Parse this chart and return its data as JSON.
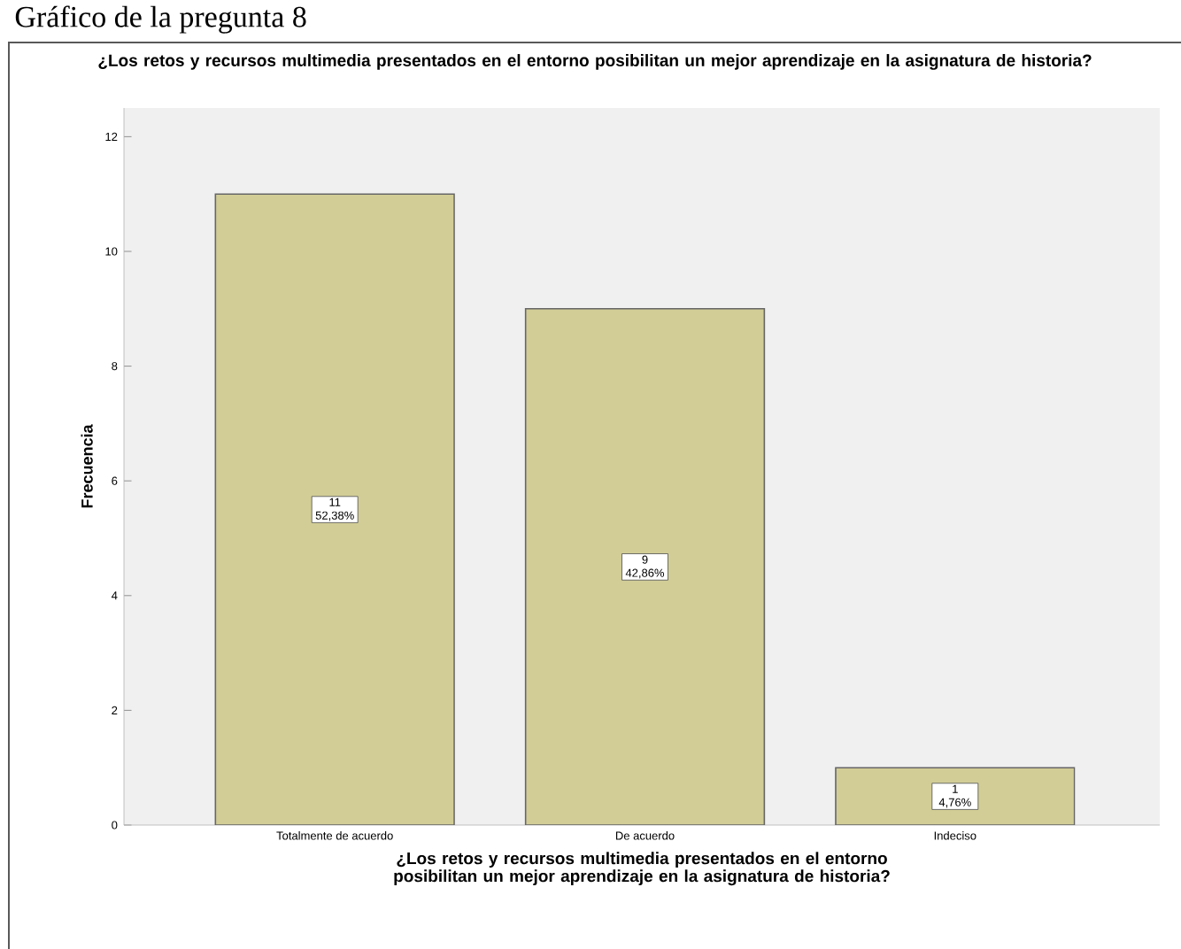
{
  "chart_data": {
    "type": "bar",
    "title": "¿Los retos y recursos multimedia presentados en el entorno posibilitan un mejor aprendizaje en la asignatura de historia?",
    "xlabel": "¿Los retos y recursos multimedia presentados en el entorno posibilitan un mejor aprendizaje en la asignatura de historia?",
    "ylabel": "Frecuencia",
    "categories": [
      "Totalmente de acuerdo",
      "De acuerdo",
      "Indeciso"
    ],
    "values": [
      11,
      9,
      1
    ],
    "value_labels": [
      "11 52,38%",
      "9 42,86%",
      "1 4,76%"
    ],
    "color": "#d2cd96",
    "ylim": [
      0,
      12.5
    ],
    "yticks": [
      0,
      2,
      4,
      6,
      8,
      10,
      12
    ],
    "annotations": [
      "Gráfico de la pregunta 8"
    ]
  }
}
